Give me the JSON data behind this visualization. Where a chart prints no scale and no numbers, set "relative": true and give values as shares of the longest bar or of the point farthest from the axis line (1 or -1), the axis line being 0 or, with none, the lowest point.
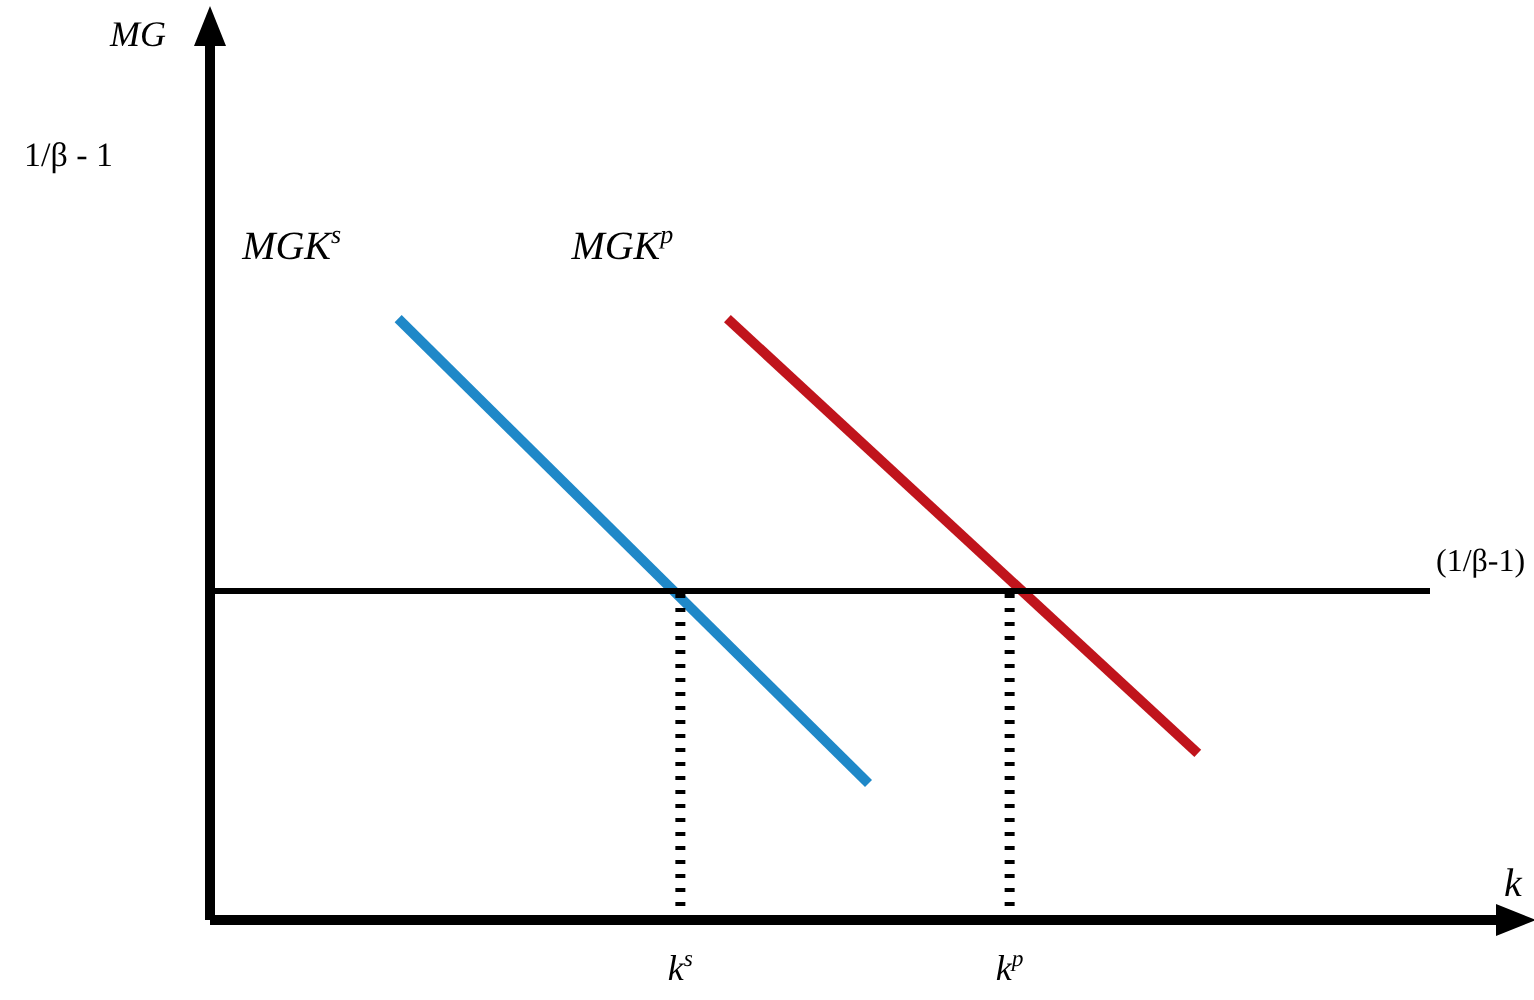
{
  "chart_data": {
    "type": "line",
    "relative": true,
    "xlabel": "k",
    "categories": [
      null,
      null,
      null,
      null,
      null,
      null,
      null,
      null,
      null,
      null,
      "k$^{s}$",
      null,
      null,
      null,
      null,
      null,
      null,
      "k$^{p}$",
      null,
      null,
      null,
      null,
      null,
      null,
      null,
      null,
      null,
      null
    ],
    "series": [
      {
        "name": "MGK$^{s}$",
        "color": "#1f88c8",
        "values": [
          null,
          null,
          null,
          null,
          1,
          null,
          null,
          null,
          null,
          null,
          null,
          null,
          null,
          null,
          0.227,
          null,
          null,
          null,
          null,
          null,
          null,
          null,
          null,
          null,
          null,
          null,
          null,
          null
        ]
      },
      {
        "name": "MGK$^{p}$",
        "color": "#c0141c",
        "values": [
          null,
          null,
          null,
          null,
          null,
          null,
          null,
          null,
          null,
          null,
          null,
          1,
          null,
          null,
          null,
          null,
          null,
          null,
          null,
          null,
          null,
          0.277,
          null,
          null,
          null,
          null,
          null,
          null
        ]
      }
    ],
    "ref_lines": [
      {
        "axis": "y",
        "value": 0.547,
        "label": "(1/β-1)",
        "color": "#000000",
        "line_style": "solid"
      },
      {
        "axis": "x",
        "value": "k$^{s}$",
        "color": "#000000",
        "line_style": "dotted"
      },
      {
        "axis": "x",
        "value": "k$^{p}$",
        "color": "#000000",
        "line_style": "dotted"
      }
    ],
    "annotations": [
      "MG",
      "1/β - 1"
    ],
    "grid": false,
    "legend": false,
    "marker": "none",
    "line_style": "solid"
  }
}
